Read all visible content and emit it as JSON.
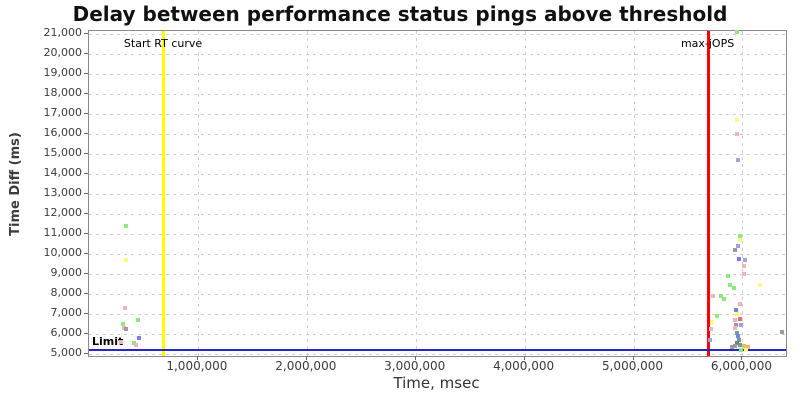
{
  "chart_data": {
    "type": "scatter",
    "title": "Delay between performance status pings above threshold",
    "xlabel": "Time, msec",
    "ylabel": "Time Diff (ms)",
    "xlim": [
      0,
      6400000
    ],
    "ylim": [
      5000,
      21000
    ],
    "grid": "dashed-lightgray",
    "legend": "none",
    "x_axis": {
      "ticks": [
        {
          "value": 1000000,
          "label": "1,000,000"
        },
        {
          "value": 2000000,
          "label": "2,000,000"
        },
        {
          "value": 3000000,
          "label": "3,000,000"
        },
        {
          "value": 4000000,
          "label": "4,000,000"
        },
        {
          "value": 5000000,
          "label": "5,000,000"
        },
        {
          "value": 6000000,
          "label": "6,000,000"
        }
      ]
    },
    "y_axis": {
      "ticks": [
        {
          "value": 21000,
          "label": "21,000"
        },
        {
          "value": 20000,
          "label": "20,000"
        },
        {
          "value": 19000,
          "label": "19,000"
        },
        {
          "value": 18000,
          "label": "18,000"
        },
        {
          "value": 17000,
          "label": "17,000"
        },
        {
          "value": 16000,
          "label": "16,000"
        },
        {
          "value": 15000,
          "label": "15,000"
        },
        {
          "value": 14000,
          "label": "14,000"
        },
        {
          "value": 13000,
          "label": "13,000"
        },
        {
          "value": 12000,
          "label": "12,000"
        },
        {
          "value": 11000,
          "label": "11,000"
        },
        {
          "value": 10000,
          "label": "10,000"
        },
        {
          "value": 9000,
          "label": "9,000"
        },
        {
          "value": 8000,
          "label": "8,000"
        },
        {
          "value": 7000,
          "label": "7,000"
        },
        {
          "value": 6000,
          "label": "6,000"
        },
        {
          "value": 5000,
          "label": "5,000"
        }
      ]
    },
    "annotations": {
      "vlines": [
        {
          "label": "Start RT curve",
          "x": 680000,
          "color": "#ffff00"
        },
        {
          "label": "max-jOPS",
          "x": 5680000,
          "color": "#ff0000"
        }
      ],
      "hline": {
        "label": "Limit",
        "y": 5200,
        "color": "#2626c9"
      }
    },
    "palette": {
      "green": "#8de97d",
      "yellow": "#fdf97e",
      "pink": "#f4b3b8",
      "red": "#ee6e6e",
      "purple": "#a89ce4",
      "blue": "#7f7fdf",
      "gray": "#9b9b9b",
      "teal": "#6f9d97",
      "slate": "#72808c",
      "orange": "#eeb869"
    },
    "points": [
      {
        "t": 340000,
        "d": 11400,
        "c": "green"
      },
      {
        "t": 340000,
        "d": 9700,
        "c": "yellow"
      },
      {
        "t": 330000,
        "d": 7300,
        "c": "pink"
      },
      {
        "t": 450000,
        "d": 6700,
        "c": "green"
      },
      {
        "t": 312000,
        "d": 6500,
        "c": "green"
      },
      {
        "t": 321000,
        "d": 6300,
        "c": "pink"
      },
      {
        "t": 339000,
        "d": 6250,
        "c": "gray"
      },
      {
        "t": 459000,
        "d": 5800,
        "c": "blue"
      },
      {
        "t": 294000,
        "d": 5600,
        "c": "pink"
      },
      {
        "t": 413000,
        "d": 5550,
        "c": "green"
      },
      {
        "t": 431000,
        "d": 5450,
        "c": "pink"
      },
      {
        "t": 5950000,
        "d": 21100,
        "c": "green"
      },
      {
        "t": 5950000,
        "d": 16700,
        "c": "yellow"
      },
      {
        "t": 5950000,
        "d": 16000,
        "c": "pink"
      },
      {
        "t": 5960000,
        "d": 14700,
        "c": "purple"
      },
      {
        "t": 5980000,
        "d": 10900,
        "c": "green"
      },
      {
        "t": 5980000,
        "d": 10700,
        "c": "yellow"
      },
      {
        "t": 5960000,
        "d": 10400,
        "c": "purple"
      },
      {
        "t": 5930000,
        "d": 10200,
        "c": "gray"
      },
      {
        "t": 5970000,
        "d": 9750,
        "c": "blue"
      },
      {
        "t": 6020000,
        "d": 9700,
        "c": "purple"
      },
      {
        "t": 6010000,
        "d": 9400,
        "c": "pink"
      },
      {
        "t": 6010000,
        "d": 9000,
        "c": "pink"
      },
      {
        "t": 5870000,
        "d": 8900,
        "c": "green"
      },
      {
        "t": 6160000,
        "d": 8450,
        "c": "yellow"
      },
      {
        "t": 5890000,
        "d": 8450,
        "c": "green"
      },
      {
        "t": 5920000,
        "d": 8300,
        "c": "green"
      },
      {
        "t": 5730000,
        "d": 7900,
        "c": "pink"
      },
      {
        "t": 5800000,
        "d": 7900,
        "c": "green"
      },
      {
        "t": 5830000,
        "d": 7750,
        "c": "green"
      },
      {
        "t": 5980000,
        "d": 7500,
        "c": "pink"
      },
      {
        "t": 5940000,
        "d": 7200,
        "c": "blue"
      },
      {
        "t": 5950000,
        "d": 7000,
        "c": "yellow"
      },
      {
        "t": 5770000,
        "d": 6900,
        "c": "green"
      },
      {
        "t": 5720000,
        "d": 6600,
        "c": "yellow"
      },
      {
        "t": 5930000,
        "d": 6700,
        "c": "pink"
      },
      {
        "t": 5980000,
        "d": 6750,
        "c": "red"
      },
      {
        "t": 5710000,
        "d": 6250,
        "c": "pink"
      },
      {
        "t": 5940000,
        "d": 6450,
        "c": "gray"
      },
      {
        "t": 5990000,
        "d": 6450,
        "c": "purple"
      },
      {
        "t": 5935000,
        "d": 6280,
        "c": "pink"
      },
      {
        "t": 6360000,
        "d": 6100,
        "c": "gray"
      },
      {
        "t": 5950000,
        "d": 6050,
        "c": "teal"
      },
      {
        "t": 5960000,
        "d": 5900,
        "c": "blue"
      },
      {
        "t": 5970000,
        "d": 5700,
        "c": "teal"
      },
      {
        "t": 5700000,
        "d": 5700,
        "c": "purple"
      },
      {
        "t": 5950000,
        "d": 5550,
        "c": "slate"
      },
      {
        "t": 5900000,
        "d": 5350,
        "c": "gray"
      },
      {
        "t": 5930000,
        "d": 5400,
        "c": "gray"
      },
      {
        "t": 5980000,
        "d": 5450,
        "c": "teal"
      },
      {
        "t": 6010000,
        "d": 5400,
        "c": "orange"
      },
      {
        "t": 6050000,
        "d": 5350,
        "c": "orange"
      },
      {
        "t": 6030000,
        "d": 5200,
        "c": "yellow"
      },
      {
        "t": 5990000,
        "d": 5200,
        "c": "green"
      }
    ]
  }
}
